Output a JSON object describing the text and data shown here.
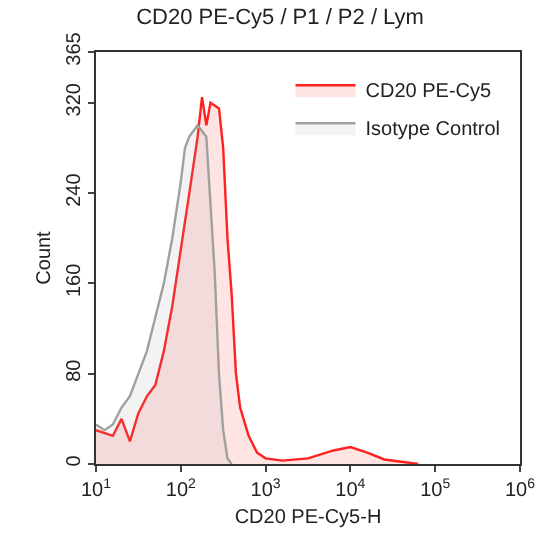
{
  "chart_data": {
    "type": "area",
    "title": "CD20 PE-Cy5 / P1 / P2 / Lym",
    "xlabel": "CD20 PE-Cy5-H",
    "ylabel": "Count",
    "log": "x",
    "xlim": [
      10,
      1000000
    ],
    "xticks": [
      {
        "value": 10,
        "label": "10$^{1}$"
      },
      {
        "value": 100,
        "label": "10$^{2}$"
      },
      {
        "value": 1000,
        "label": "10$^{3}$"
      },
      {
        "value": 10000,
        "label": "10$^{4}$"
      },
      {
        "value": 100000,
        "label": "10$^{5}$"
      },
      {
        "value": 1000000,
        "label": "10$^{6}$"
      }
    ],
    "ylim": [
      0,
      365
    ],
    "yticks": [
      0,
      80,
      160,
      240,
      320,
      365
    ],
    "legend": "top right",
    "grid": false,
    "marker": "none",
    "line_style": "solid",
    "series": [
      {
        "name": "CD20 PE-Cy5",
        "color": "#ff2020",
        "x": [
          10,
          15.8,
          20,
          25.1,
          31.6,
          39.8,
          50.1,
          63.1,
          79.4,
          100,
          126,
          158,
          178,
          200,
          224,
          282,
          316,
          355,
          398,
          447,
          501,
          631,
          794,
          1000,
          1580,
          3160,
          6310,
          10000,
          15800,
          25100,
          39800,
          63100
        ],
        "values": [
          30,
          25,
          40,
          20,
          45,
          60,
          70,
          100,
          140,
          190,
          240,
          290,
          325,
          300,
          320,
          315,
          280,
          200,
          150,
          80,
          50,
          25,
          10,
          5,
          3,
          5,
          12,
          15,
          10,
          4,
          2,
          0
        ]
      },
      {
        "name": "Isotype Control",
        "color": "#a0a0a0",
        "x": [
          10,
          12.6,
          15.8,
          20,
          25.1,
          31.6,
          39.8,
          50.1,
          63.1,
          79.4,
          100,
          112,
          126,
          158,
          200,
          224,
          251,
          282,
          316,
          355,
          398
        ],
        "values": [
          35,
          30,
          35,
          50,
          60,
          80,
          100,
          130,
          160,
          200,
          250,
          280,
          290,
          300,
          290,
          230,
          170,
          80,
          30,
          5,
          0
        ]
      }
    ]
  }
}
